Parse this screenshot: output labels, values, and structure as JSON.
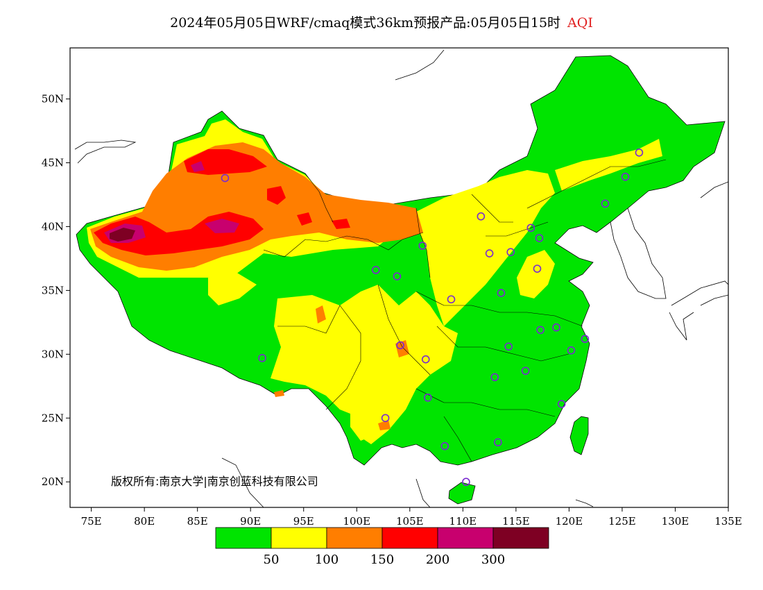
{
  "title": {
    "main": "2024年05月05日WRF/cmaq模式36km预报产品:05月05日15时",
    "accent": "AQI"
  },
  "copyright": "版权所有:南京大学|南京创蓝科技有限公司",
  "axes": {
    "x_ticks": [
      "75E",
      "80E",
      "85E",
      "90E",
      "95E",
      "100E",
      "105E",
      "110E",
      "115E",
      "120E",
      "125E",
      "130E",
      "135E"
    ],
    "y_ticks": [
      "50N",
      "45N",
      "40N",
      "35N",
      "30N",
      "25N",
      "20N"
    ]
  },
  "legend": {
    "colors": [
      "#00e400",
      "#ffff00",
      "#ff7e00",
      "#ff0000",
      "#c8006e",
      "#7e0023"
    ],
    "labels": [
      "50",
      "100",
      "150",
      "200",
      "300"
    ]
  },
  "stations": [
    {
      "lon": 126.6,
      "lat": 45.8
    },
    {
      "lon": 125.3,
      "lat": 43.9
    },
    {
      "lon": 123.4,
      "lat": 41.8
    },
    {
      "lon": 87.6,
      "lat": 43.8
    },
    {
      "lon": 111.7,
      "lat": 40.8
    },
    {
      "lon": 116.4,
      "lat": 39.9
    },
    {
      "lon": 117.2,
      "lat": 39.1
    },
    {
      "lon": 114.5,
      "lat": 38.0
    },
    {
      "lon": 112.5,
      "lat": 37.9
    },
    {
      "lon": 106.2,
      "lat": 38.5
    },
    {
      "lon": 103.8,
      "lat": 36.1
    },
    {
      "lon": 101.8,
      "lat": 36.6
    },
    {
      "lon": 117.0,
      "lat": 36.7
    },
    {
      "lon": 113.6,
      "lat": 34.8
    },
    {
      "lon": 108.9,
      "lat": 34.3
    },
    {
      "lon": 117.3,
      "lat": 31.9
    },
    {
      "lon": 118.8,
      "lat": 32.1
    },
    {
      "lon": 121.5,
      "lat": 31.2
    },
    {
      "lon": 120.2,
      "lat": 30.3
    },
    {
      "lon": 114.3,
      "lat": 30.6
    },
    {
      "lon": 104.1,
      "lat": 30.7
    },
    {
      "lon": 106.5,
      "lat": 29.6
    },
    {
      "lon": 91.1,
      "lat": 29.7
    },
    {
      "lon": 115.9,
      "lat": 28.7
    },
    {
      "lon": 113.0,
      "lat": 28.2
    },
    {
      "lon": 106.7,
      "lat": 26.6
    },
    {
      "lon": 119.3,
      "lat": 26.1
    },
    {
      "lon": 102.7,
      "lat": 25.0
    },
    {
      "lon": 113.3,
      "lat": 23.1
    },
    {
      "lon": 108.3,
      "lat": 22.8
    },
    {
      "lon": 110.3,
      "lat": 20.0
    }
  ]
}
